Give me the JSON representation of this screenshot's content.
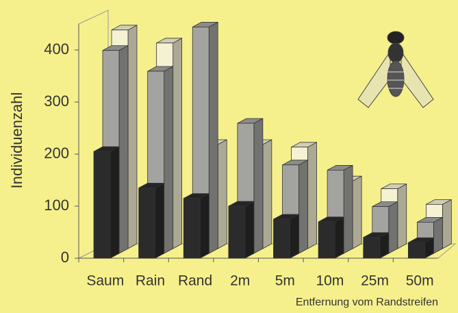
{
  "chart_data": {
    "type": "bar3d",
    "y_label": "Individuenzahl",
    "x_label": "Entfernung vom Randstreifen",
    "categories": [
      "Saum",
      "Rain",
      "Rand",
      "2m",
      "5m",
      "10m",
      "25m",
      "50m"
    ],
    "series": [
      {
        "color": "#2b2b2b",
        "values": [
          205,
          135,
          115,
          100,
          75,
          70,
          40,
          30
        ]
      },
      {
        "color": "#a3a3a0",
        "values": [
          390,
          350,
          435,
          250,
          170,
          160,
          90,
          60
        ]
      },
      {
        "color": "#f4f2d2",
        "values": [
          420,
          395,
          200,
          200,
          195,
          130,
          115,
          85
        ]
      }
    ],
    "ylim": [
      0,
      450
    ],
    "yticks": [
      0,
      100,
      200,
      300,
      400
    ],
    "grid": false
  }
}
